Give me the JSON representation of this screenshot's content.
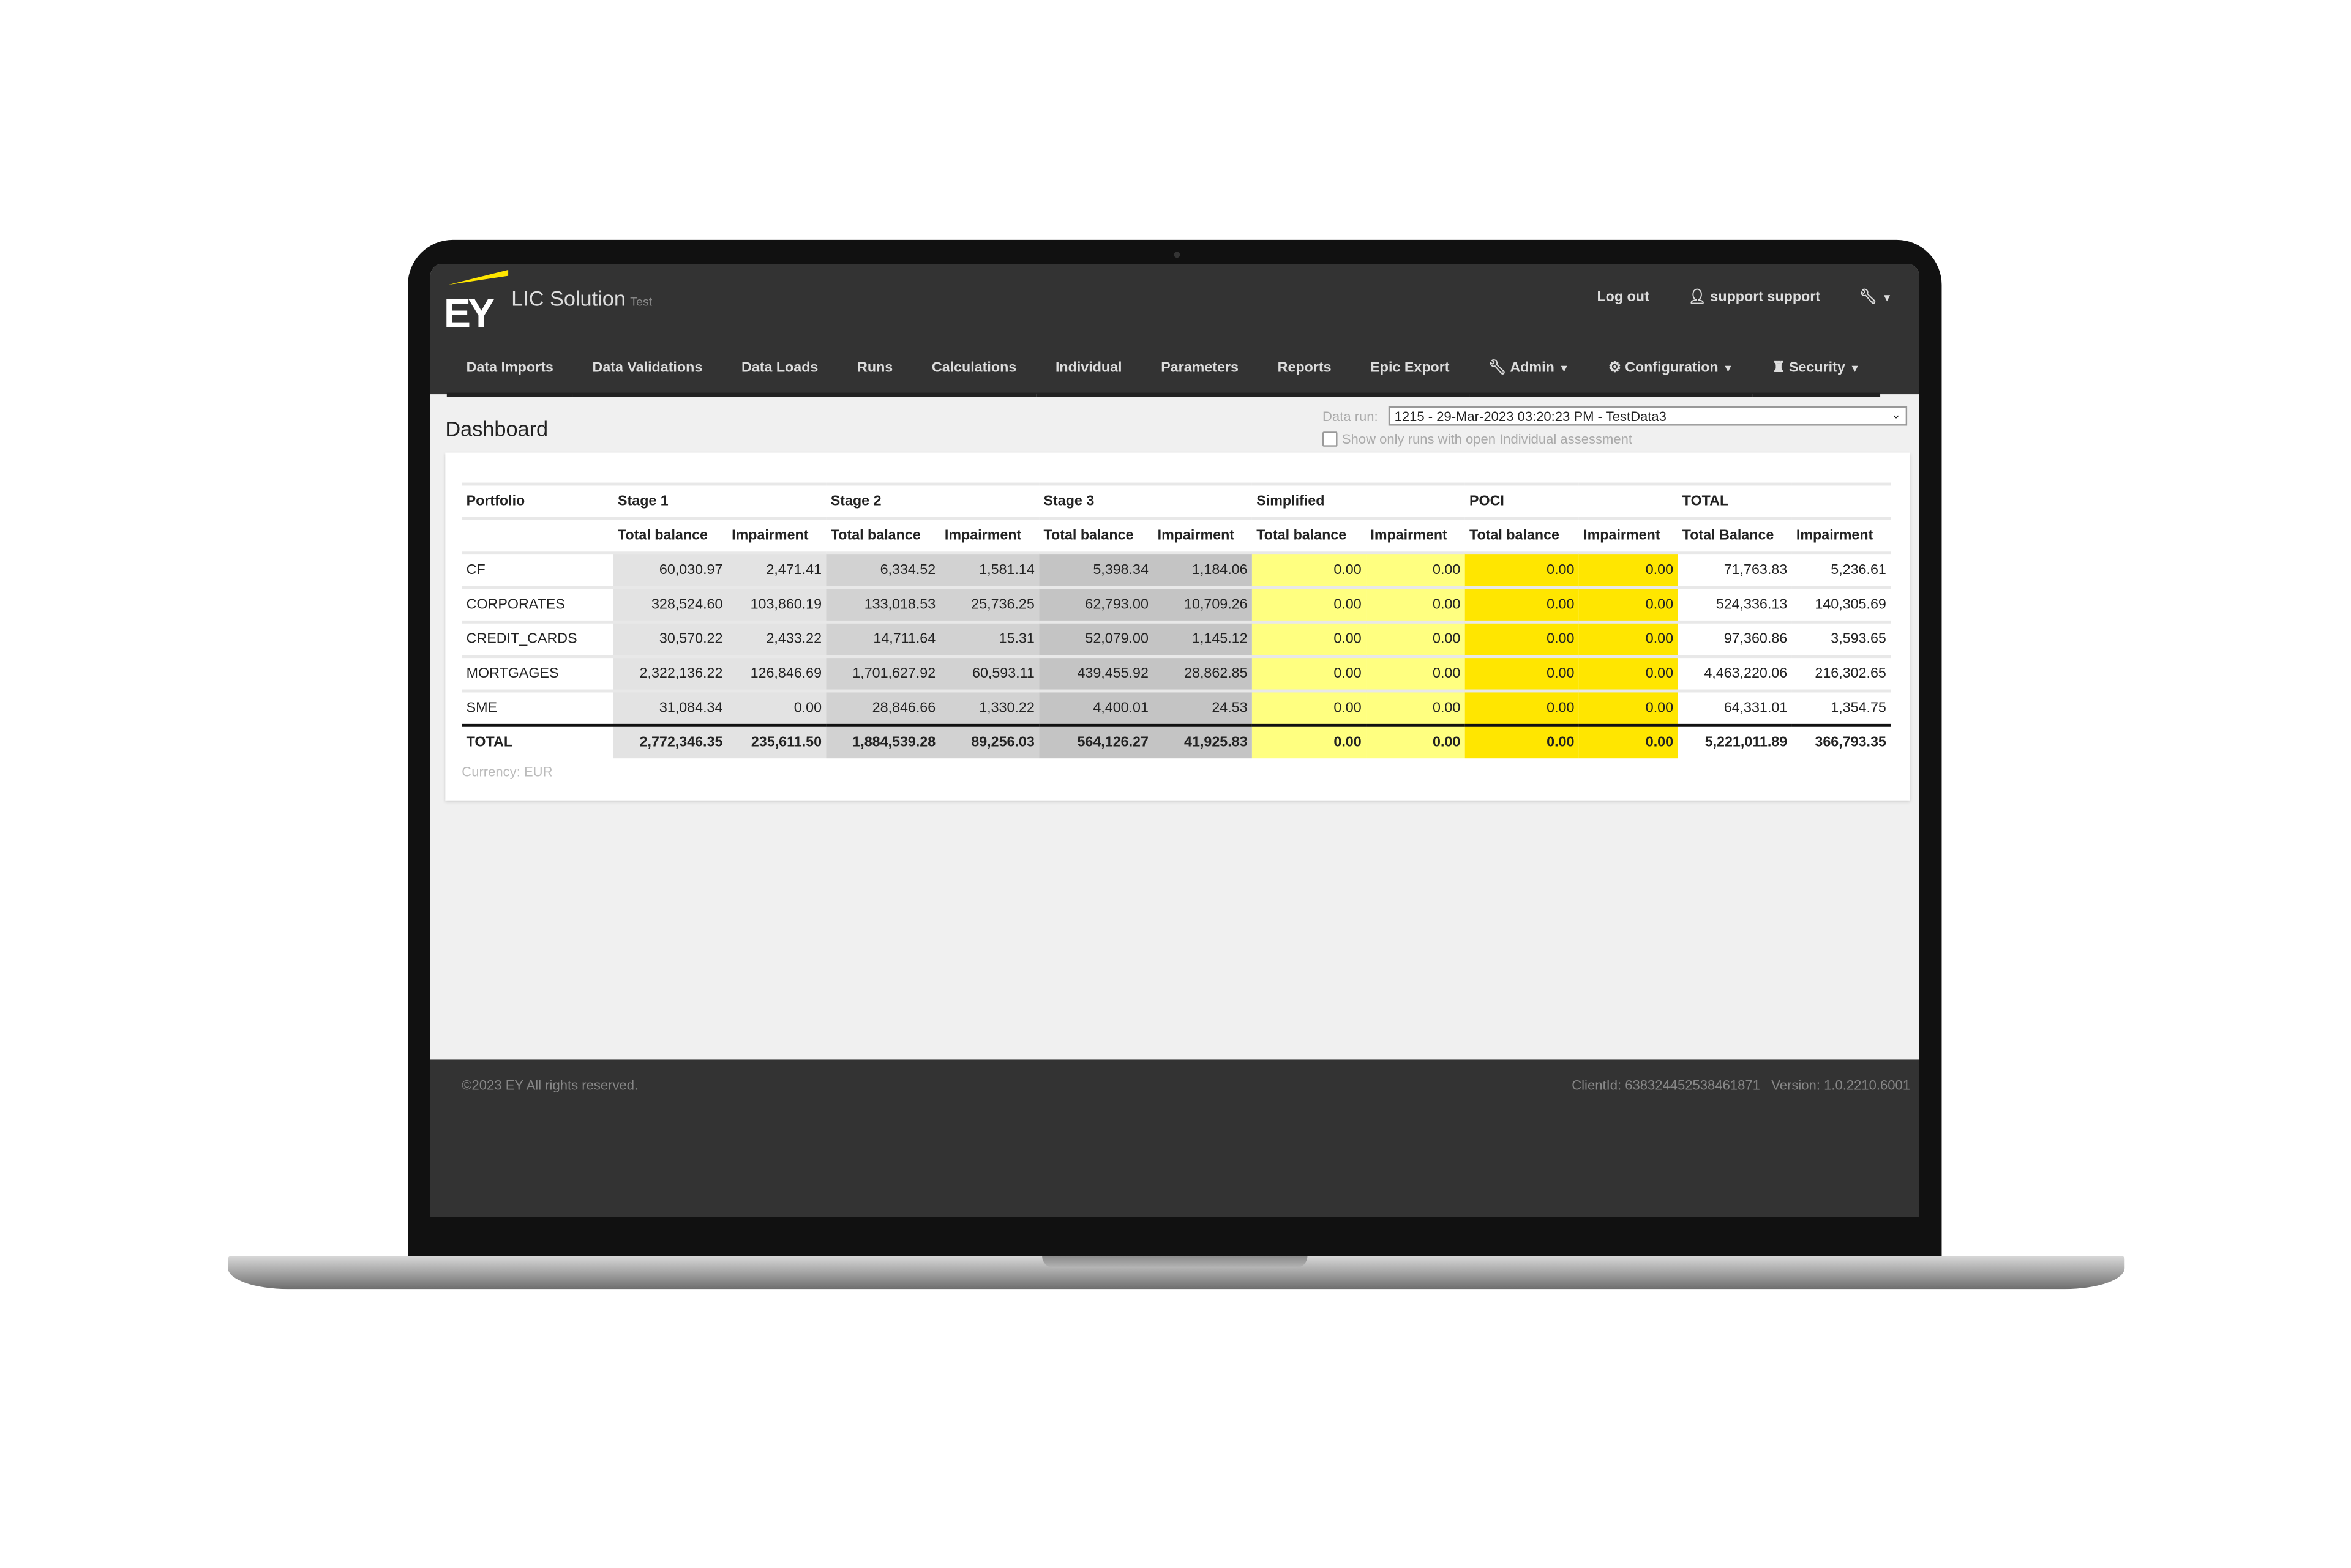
{
  "app": {
    "brand": "EY",
    "title": "LIC Solution",
    "environment": "Test"
  },
  "top_links": {
    "logout": "Log out",
    "user": "support support"
  },
  "nav": [
    {
      "label": "Data Imports"
    },
    {
      "label": "Data Validations"
    },
    {
      "label": "Data Loads"
    },
    {
      "label": "Runs"
    },
    {
      "label": "Calculations"
    },
    {
      "label": "Individual"
    },
    {
      "label": "Parameters"
    },
    {
      "label": "Reports"
    },
    {
      "label": "Epic Export"
    },
    {
      "label": "Admin",
      "icon": "wrench-icon",
      "dropdown": true
    },
    {
      "label": "Configuration",
      "icon": "gear-icon",
      "dropdown": true
    },
    {
      "label": "Security",
      "icon": "chess-rook-icon",
      "dropdown": true
    }
  ],
  "page": {
    "title": "Dashboard",
    "data_run_label": "Data run:",
    "data_run_value": "1215 - 29-Mar-2023 03:20:23 PM - TestData3",
    "open_assessment_label": "Show only runs with open Individual assessment",
    "open_assessment_checked": false
  },
  "table": {
    "groups": [
      "Portfolio",
      "Stage 1",
      "Stage 2",
      "Stage 3",
      "Simplified",
      "POCI",
      "TOTAL"
    ],
    "subheaders": [
      "",
      "Total balance",
      "Impairment",
      "Total balance",
      "Impairment",
      "Total balance",
      "Impairment",
      "Total balance",
      "Impairment",
      "Total balance",
      "Impairment",
      "Total Balance",
      "Impairment"
    ],
    "rows": [
      [
        "CF",
        "60,030.97",
        "2,471.41",
        "6,334.52",
        "1,581.14",
        "5,398.34",
        "1,184.06",
        "0.00",
        "0.00",
        "0.00",
        "0.00",
        "71,763.83",
        "5,236.61"
      ],
      [
        "CORPORATES",
        "328,524.60",
        "103,860.19",
        "133,018.53",
        "25,736.25",
        "62,793.00",
        "10,709.26",
        "0.00",
        "0.00",
        "0.00",
        "0.00",
        "524,336.13",
        "140,305.69"
      ],
      [
        "CREDIT_CARDS",
        "30,570.22",
        "2,433.22",
        "14,711.64",
        "15.31",
        "52,079.00",
        "1,145.12",
        "0.00",
        "0.00",
        "0.00",
        "0.00",
        "97,360.86",
        "3,593.65"
      ],
      [
        "MORTGAGES",
        "2,322,136.22",
        "126,846.69",
        "1,701,627.92",
        "60,593.11",
        "439,455.92",
        "28,862.85",
        "0.00",
        "0.00",
        "0.00",
        "0.00",
        "4,463,220.06",
        "216,302.65"
      ],
      [
        "SME",
        "31,084.34",
        "0.00",
        "28,846.66",
        "1,330.22",
        "4,400.01",
        "24.53",
        "0.00",
        "0.00",
        "0.00",
        "0.00",
        "64,331.01",
        "1,354.75"
      ]
    ],
    "total": [
      "TOTAL",
      "2,772,346.35",
      "235,611.50",
      "1,884,539.28",
      "89,256.03",
      "564,126.27",
      "41,925.83",
      "0.00",
      "0.00",
      "0.00",
      "0.00",
      "5,221,011.89",
      "366,793.35"
    ],
    "colors": {
      "stage1": "#e3e3e3",
      "stage2": "#d2d2d2",
      "stage3": "#c4c4c4",
      "simplified": "#ffff80",
      "poci": "#ffe600"
    }
  },
  "currency": "Currency: EUR",
  "footer": {
    "copyright": "©2023 EY All rights reserved.",
    "client": "ClientId: 638324452538461871",
    "version": "Version: 1.0.2210.6001"
  }
}
